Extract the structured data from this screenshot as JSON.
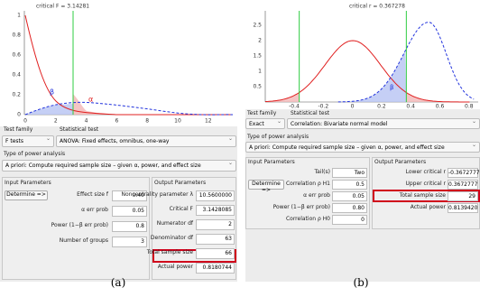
{
  "panel_a": {
    "plot": {
      "title": "critical F = 3.14281",
      "y_ticks": [
        "0",
        "0.2",
        "0.4",
        "0.6",
        "0.8",
        "1"
      ],
      "x_ticks": [
        "0",
        "2",
        "4",
        "6",
        "8",
        "10",
        "12"
      ],
      "beta": "β",
      "alpha": "α"
    },
    "test_family_label": "Test family",
    "statistical_test_label": "Statistical test",
    "test_family": "F tests",
    "statistical_test": "ANOVA: Fixed effects, omnibus, one-way",
    "power_analysis_label": "Type of power analysis",
    "power_analysis": "A priori: Compute required sample size – given α, power, and effect size",
    "input_title": "Input Parameters",
    "determine": "Determine =>",
    "inputs": [
      {
        "label": "Effect size f",
        "value": "0.40"
      },
      {
        "label": "α err prob",
        "value": "0.05"
      },
      {
        "label": "Power (1−β err prob)",
        "value": "0.8"
      },
      {
        "label": "Number of groups",
        "value": "3"
      }
    ],
    "output_title": "Output Parameters",
    "outputs": [
      {
        "label": "Noncentrality parameter λ",
        "value": "10.5600000"
      },
      {
        "label": "Critical F",
        "value": "3.1428085"
      },
      {
        "label": "Numerator df",
        "value": "2"
      },
      {
        "label": "Denominator df",
        "value": "63"
      },
      {
        "label": "Total sample size",
        "value": "66"
      },
      {
        "label": "Actual power",
        "value": "0.8180744"
      }
    ]
  },
  "panel_b": {
    "plot": {
      "title": "critical r = 0.367278",
      "y_ticks": [
        "0.5",
        "1",
        "1.5",
        "2",
        "2.5"
      ],
      "x_ticks": [
        "-0.4",
        "-0.2",
        "0",
        "0.2",
        "0.4",
        "0.6",
        "0.8"
      ],
      "beta": "β"
    },
    "test_family_label": "Test family",
    "statistical_test_label": "Statistical test",
    "test_family": "Exact",
    "statistical_test": "Correlation: Bivariate normal model",
    "power_analysis_label": "Type of power analysis",
    "power_analysis": "A priori: Compute required sample size – given α, power, and effect size",
    "input_title": "Input Parameters",
    "determine": "Determine =>",
    "inputs": [
      {
        "label": "Tail(s)",
        "value": "Two"
      },
      {
        "label": "Correlation ρ H1",
        "value": "0.5"
      },
      {
        "label": "α err prob",
        "value": "0.05"
      },
      {
        "label": "Power (1−β err prob)",
        "value": "0.80"
      },
      {
        "label": "Correlation ρ H0",
        "value": "0"
      }
    ],
    "output_title": "Output Parameters",
    "outputs": [
      {
        "label": "Lower critical r",
        "value": "-0.3672777"
      },
      {
        "label": "Upper critical r",
        "value": "0.3672777"
      },
      {
        "label": "Total sample size",
        "value": "29"
      },
      {
        "label": "Actual power",
        "value": "0.8139420"
      }
    ]
  },
  "captions": [
    "(a)",
    "(b)"
  ]
}
